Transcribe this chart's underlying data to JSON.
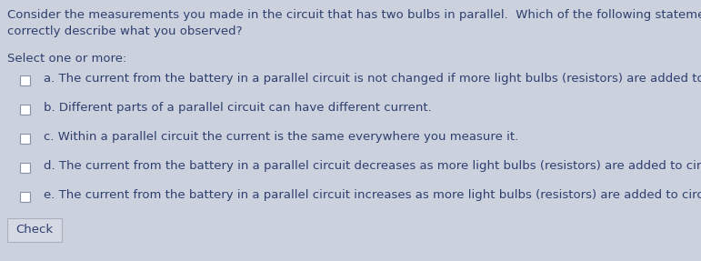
{
  "bg_color": "#ccd1de",
  "text_color": "#2e3f6e",
  "button_color": "#d5d9e4",
  "button_border": "#aab0be",
  "font_size_question": 9.5,
  "font_size_options": 9.5,
  "question_line1": "Consider the measurements you made in the circuit that has two bulbs in parallel.  Which of the following statements",
  "question_line2": "correctly describe what you observed?",
  "select_label": "Select one or more:",
  "options": [
    "a. The current from the battery in a parallel circuit is not changed if more light bulbs (resistors) are added to circuit.",
    "b. Different parts of a parallel circuit can have different current.",
    "c. Within a parallel circuit the current is the same everywhere you measure it.",
    "d. The current from the battery in a parallel circuit decreases as more light bulbs (resistors) are added to circuit.",
    "e. The current from the battery in a parallel circuit increases as more light bulbs (resistors) are added to circuit."
  ],
  "button_label": "Check"
}
